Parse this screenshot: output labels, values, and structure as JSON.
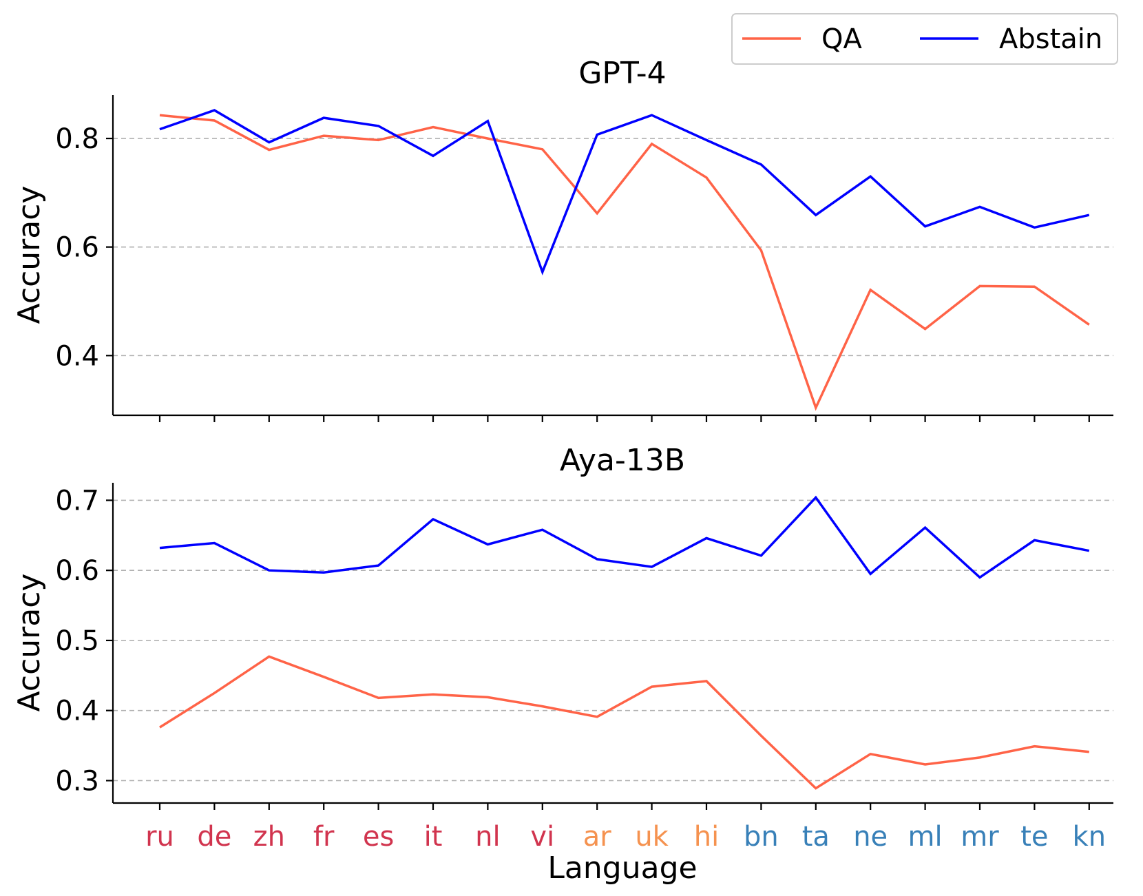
{
  "chart_data": [
    {
      "type": "line",
      "title": "GPT-4",
      "xlabel": "",
      "ylabel": "Accuracy",
      "ylim": [
        0.29,
        0.88
      ],
      "yticks": [
        0.4,
        0.6,
        0.8
      ],
      "ytick_labels": [
        "0.4",
        "0.6",
        "0.8"
      ],
      "grid": "horizontal dashed",
      "categories": [
        "ru",
        "de",
        "zh",
        "fr",
        "es",
        "it",
        "nl",
        "vi",
        "ar",
        "uk",
        "hi",
        "bn",
        "ta",
        "ne",
        "ml",
        "mr",
        "te",
        "kn"
      ],
      "series": [
        {
          "name": "QA",
          "color": "#ff6347",
          "values": [
            0.843,
            0.833,
            0.779,
            0.805,
            0.797,
            0.821,
            0.8,
            0.78,
            0.662,
            0.79,
            0.728,
            0.594,
            0.304,
            0.521,
            0.449,
            0.528,
            0.527,
            0.457
          ]
        },
        {
          "name": "Abstain",
          "color": "#0000ff",
          "values": [
            0.817,
            0.852,
            0.793,
            0.838,
            0.823,
            0.768,
            0.832,
            0.554,
            0.807,
            0.843,
            0.797,
            0.752,
            0.659,
            0.73,
            0.638,
            0.674,
            0.636,
            0.659
          ]
        }
      ]
    },
    {
      "type": "line",
      "title": "Aya-13B",
      "xlabel": "Language",
      "ylabel": "Accuracy",
      "ylim": [
        0.268,
        0.725
      ],
      "yticks": [
        0.3,
        0.4,
        0.5,
        0.6,
        0.7
      ],
      "ytick_labels": [
        "0.3",
        "0.4",
        "0.5",
        "0.6",
        "0.7"
      ],
      "grid": "horizontal dashed",
      "categories": [
        "ru",
        "de",
        "zh",
        "fr",
        "es",
        "it",
        "nl",
        "vi",
        "ar",
        "uk",
        "hi",
        "bn",
        "ta",
        "ne",
        "ml",
        "mr",
        "te",
        "kn"
      ],
      "series": [
        {
          "name": "QA",
          "color": "#ff6347",
          "values": [
            0.376,
            0.425,
            0.477,
            0.448,
            0.418,
            0.423,
            0.419,
            0.406,
            0.391,
            0.434,
            0.442,
            0.364,
            0.289,
            0.338,
            0.323,
            0.333,
            0.349,
            0.341
          ]
        },
        {
          "name": "Abstain",
          "color": "#0000ff",
          "values": [
            0.632,
            0.639,
            0.6,
            0.597,
            0.607,
            0.673,
            0.637,
            0.658,
            0.616,
            0.605,
            0.646,
            0.621,
            0.704,
            0.595,
            0.661,
            0.59,
            0.643,
            0.628
          ]
        }
      ]
    }
  ],
  "legend": {
    "placement": "top-right",
    "entries": [
      {
        "label": "QA",
        "color": "#ff6347"
      },
      {
        "label": "Abstain",
        "color": "#0000ff"
      }
    ]
  },
  "category_colors": {
    "ru": "#d1344e",
    "de": "#d1344e",
    "zh": "#d1344e",
    "fr": "#d1344e",
    "es": "#d1344e",
    "it": "#d1344e",
    "nl": "#d1344e",
    "vi": "#d1344e",
    "ar": "#f5924f",
    "uk": "#f5924f",
    "hi": "#f5924f",
    "bn": "#3880b8",
    "ta": "#3880b8",
    "ne": "#3880b8",
    "ml": "#3880b8",
    "mr": "#3880b8",
    "te": "#3880b8",
    "kn": "#3880b8"
  }
}
